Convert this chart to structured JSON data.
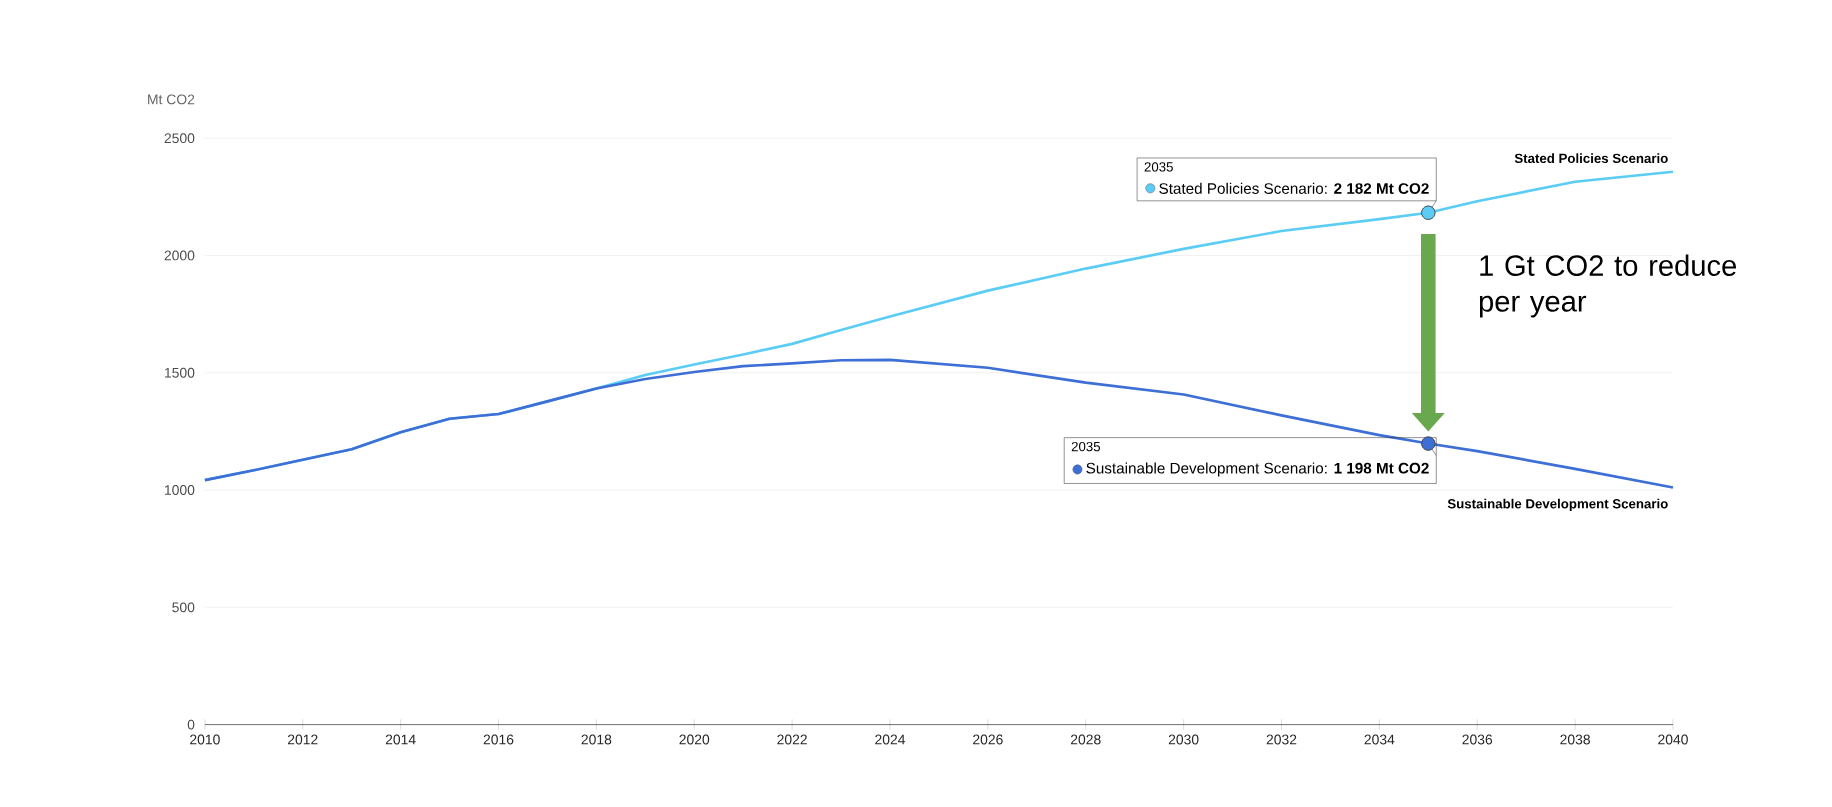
{
  "chart_data": {
    "type": "line",
    "ylabel": "Mt CO2",
    "x": [
      2010,
      2011,
      2012,
      2013,
      2014,
      2015,
      2016,
      2017,
      2018,
      2019,
      2020,
      2021,
      2022,
      2023,
      2024,
      2026,
      2028,
      2030,
      2032,
      2034,
      2035,
      2036,
      2038,
      2040
    ],
    "series": [
      {
        "name": "Stated Policies Scenario",
        "color": "#5bcdf5",
        "values": [
          1042,
          1084,
          1129,
          1174,
          1246,
          1304,
          1324,
          1378,
          1433,
          1490,
          1535,
          1578,
          1623,
          1682,
          1740,
          1850,
          1944,
          2028,
          2104,
          2155,
          2182,
          2231,
          2314,
          2357
        ]
      },
      {
        "name": "Sustainable Development Scenario",
        "color": "#3e6fd6",
        "values": [
          1042,
          1084,
          1129,
          1174,
          1246,
          1304,
          1324,
          1378,
          1433,
          1473,
          1503,
          1528,
          1540,
          1553,
          1555,
          1521,
          1458,
          1407,
          1318,
          1234,
          1198,
          1166,
          1090,
          1011
        ]
      }
    ],
    "xlim": [
      2010,
      2040
    ],
    "xticks": [
      2010,
      2012,
      2014,
      2016,
      2018,
      2020,
      2022,
      2024,
      2026,
      2028,
      2030,
      2032,
      2034,
      2036,
      2038,
      2040
    ],
    "ylim": [
      0,
      2500
    ],
    "yticks": [
      0,
      500,
      1000,
      1500,
      2000,
      2500
    ],
    "grid": "y",
    "annotations": [
      "2035",
      {
        "text": "Stated Policies Scenario: **2 182 Mt CO2**",
        "x": 2035,
        "y": 2182
      },
      "2035",
      {
        "text": "Sustainable Development Scenario: **1 198 Mt CO2**",
        "x": 2035,
        "y": 1198
      },
      "1 Gt CO2 to reduce per year"
    ]
  }
}
